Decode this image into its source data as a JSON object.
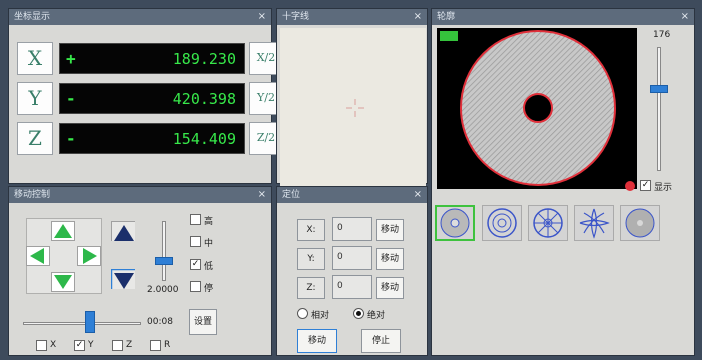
{
  "coords_panel": {
    "title": "坐标显示",
    "close": "×",
    "rows": [
      {
        "axis": "X",
        "sign": "+",
        "value": "189.230",
        "half": "X/2"
      },
      {
        "axis": "Y",
        "sign": "-",
        "value": "420.398",
        "half": "Y/2"
      },
      {
        "axis": "Z",
        "sign": "-",
        "value": "154.409",
        "half": "Z/2"
      }
    ]
  },
  "camera_panel": {
    "title": "十字线",
    "close": "×"
  },
  "contour_panel": {
    "title": "轮廓",
    "close": "×",
    "badge": "",
    "slider_value": "176",
    "checkbox_label": "显示",
    "checkbox_checked": true
  },
  "motion_panel": {
    "title": "移动控制",
    "close": "×",
    "speed_value": "2.0000",
    "bottom_value": "00:08",
    "apply_label": "设置",
    "side_options": [
      {
        "label": "高",
        "checked": false
      },
      {
        "label": "中",
        "checked": false
      },
      {
        "label": "低",
        "checked": true
      },
      {
        "label": "停",
        "checked": false
      }
    ],
    "bottom_options": [
      {
        "label": "X",
        "checked": false
      },
      {
        "label": "Y",
        "checked": true
      },
      {
        "label": "Z",
        "checked": false
      },
      {
        "label": "R",
        "checked": false
      }
    ]
  },
  "move_panel": {
    "title": "定位",
    "close": "×",
    "rows": [
      {
        "label": "X:",
        "value": "0",
        "button": "移动"
      },
      {
        "label": "Y:",
        "value": "0",
        "button": "移动"
      },
      {
        "label": "Z:",
        "value": "0",
        "button": "移动"
      }
    ],
    "radio_abs": "相对",
    "radio_rel": "绝对",
    "move_button": "移动",
    "stop_button": "停止"
  },
  "colors": {
    "accent": "#2e7fd6",
    "readout_green": "#37e84a",
    "arrow_green": "#2db84a",
    "contour_red": "#e0303a"
  }
}
